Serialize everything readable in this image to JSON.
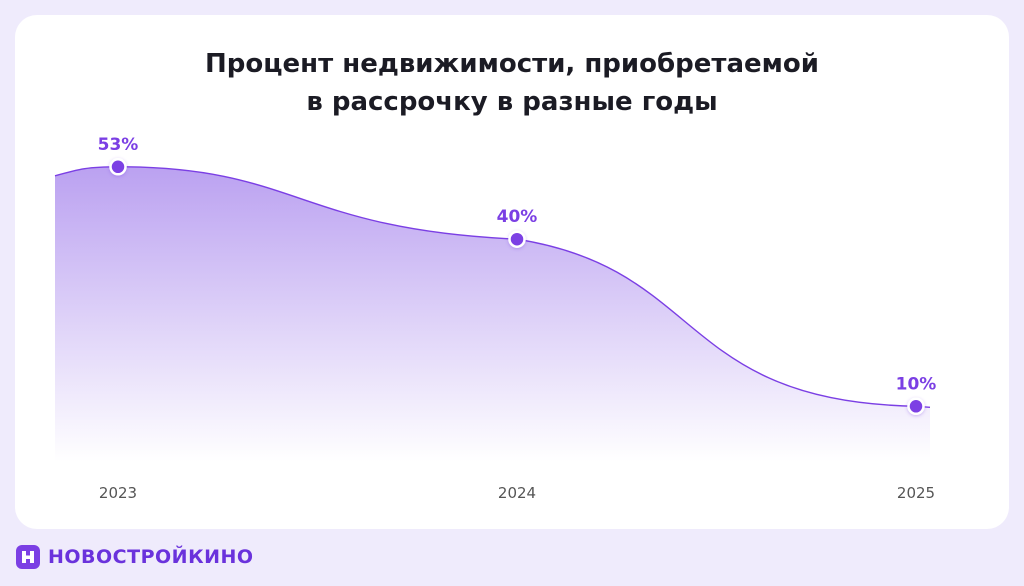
{
  "chart_data": {
    "type": "area",
    "title_lines": [
      "Процент недвижимости, приобретаемой",
      "в рассрочку в разные годы"
    ],
    "categories": [
      "2023",
      "2024",
      "2025"
    ],
    "values": [
      53,
      40,
      10
    ],
    "data_labels": [
      "53%",
      "40%",
      "10%"
    ],
    "ylim": [
      0,
      60
    ],
    "grid": false,
    "legend": "none"
  },
  "colors": {
    "background": "#efebfc",
    "card": "#ffffff",
    "line": "#7b3fe4",
    "fill_top": "#b79cf0",
    "label": "#7b3fe4",
    "tick": "#555555",
    "brand": "#6a32dc"
  },
  "brand": {
    "name": "НОВОСТРОЙКИНО",
    "icon": "logo-h-icon"
  }
}
